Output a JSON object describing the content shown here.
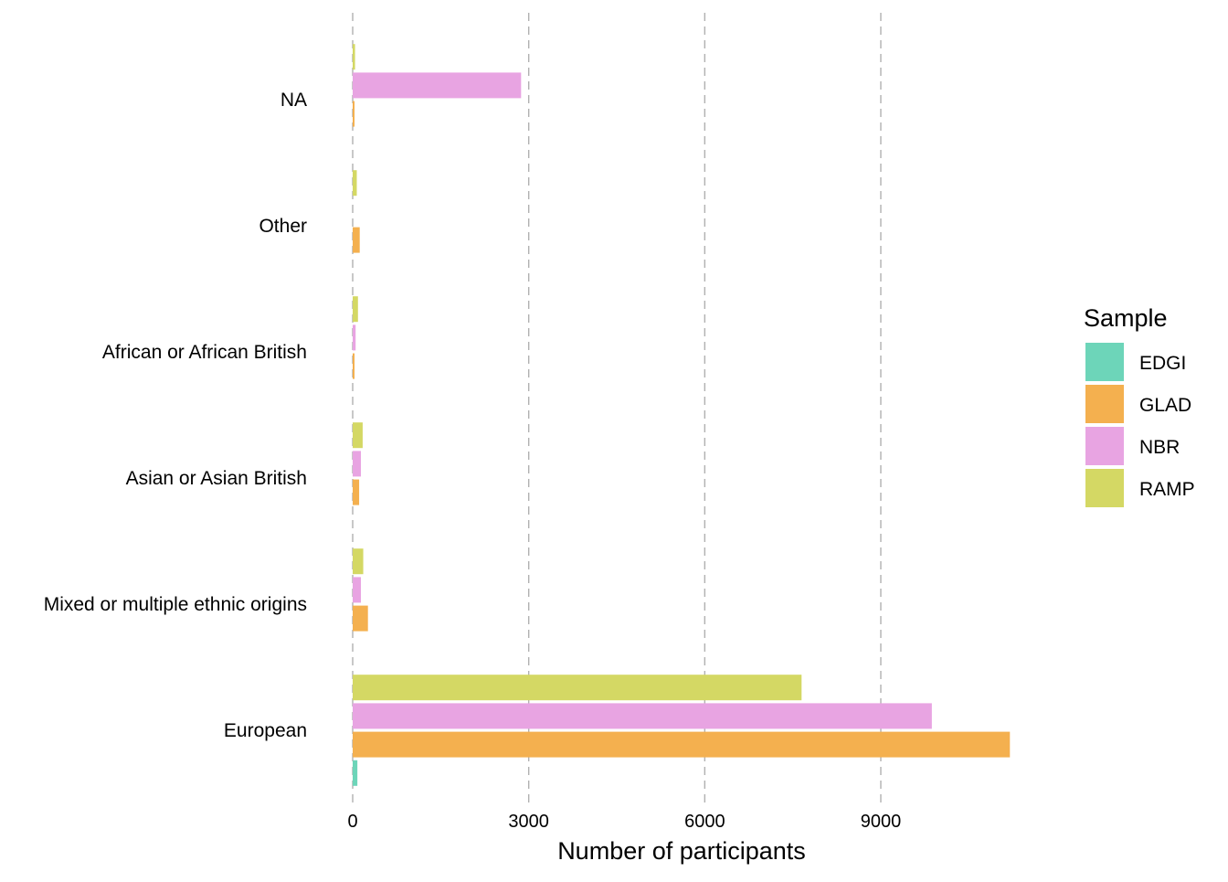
{
  "chart_data": {
    "type": "bar",
    "orientation": "horizontal",
    "title": "",
    "xlabel": "Number of participants",
    "ylabel": "",
    "xlim": [
      0,
      12000
    ],
    "xticks": [
      0,
      3000,
      6000,
      9000
    ],
    "xtick_labels": [
      "0",
      "3000",
      "6000",
      "9000"
    ],
    "grid": "vertical dashed",
    "categories": [
      "European",
      "Mixed or multiple ethnic origins",
      "Asian or Asian British",
      "African or African British",
      "Other",
      "NA"
    ],
    "series": [
      {
        "name": "EDGI",
        "color": "#6dd5b9",
        "values": [
          80,
          0,
          0,
          0,
          0,
          0
        ]
      },
      {
        "name": "GLAD",
        "color": "#f4b04f",
        "values": [
          11200,
          260,
          110,
          30,
          120,
          30
        ]
      },
      {
        "name": "NBR",
        "color": "#e8a4e2",
        "values": [
          9870,
          140,
          140,
          50,
          0,
          2870
        ]
      },
      {
        "name": "RAMP",
        "color": "#d4d864",
        "values": [
          7650,
          180,
          170,
          90,
          70,
          40
        ]
      }
    ],
    "legend": {
      "title": "Sample",
      "position": "right"
    }
  }
}
